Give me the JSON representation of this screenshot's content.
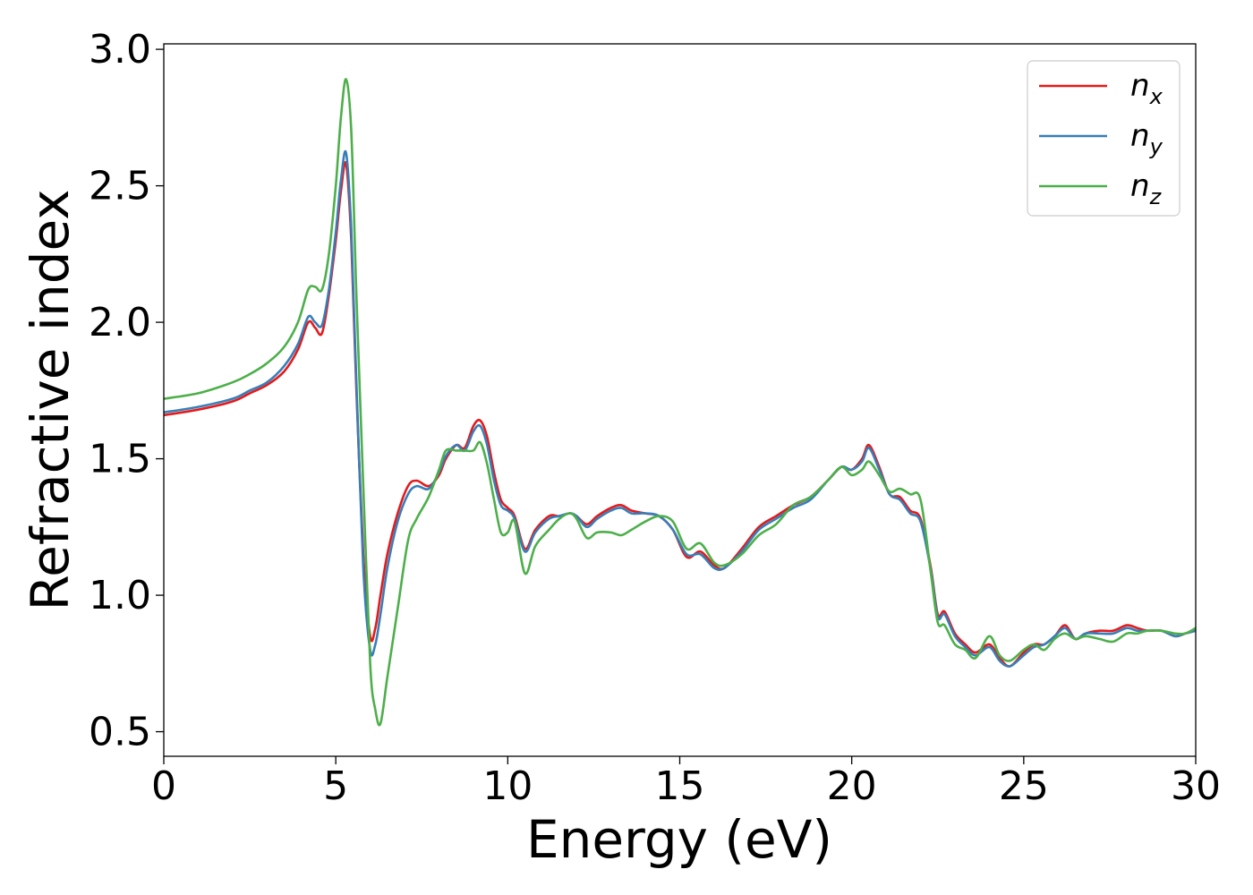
{
  "chart_data": {
    "type": "line",
    "title": "",
    "xlabel": "Energy (eV)",
    "ylabel": "Refractive index",
    "xlim": [
      0,
      30
    ],
    "ylim": [
      0.41,
      3.02
    ],
    "xticks": [
      "0",
      "5",
      "10",
      "15",
      "20",
      "25",
      "30"
    ],
    "yticks": [
      "0.5",
      "1.0",
      "1.5",
      "2.0",
      "2.5",
      "3.0"
    ],
    "grid": false,
    "legend_position": "top-right",
    "series": [
      {
        "name": "n",
        "subscript": "x",
        "color": "#e41a1c",
        "x": [
          0,
          1,
          2,
          2.5,
          3,
          3.5,
          3.9,
          4.2,
          4.4,
          4.6,
          4.8,
          5.0,
          5.15,
          5.3,
          5.45,
          5.6,
          5.8,
          6.0,
          6.15,
          6.3,
          6.5,
          6.8,
          7.1,
          7.35,
          7.7,
          8.0,
          8.2,
          8.5,
          8.75,
          9.0,
          9.2,
          9.4,
          9.6,
          9.8,
          10.0,
          10.2,
          10.5,
          10.8,
          11.2,
          11.5,
          11.8,
          12.0,
          12.3,
          12.6,
          13.0,
          13.3,
          13.6,
          14.0,
          14.4,
          14.8,
          15.2,
          15.6,
          16.0,
          16.3,
          16.8,
          17.3,
          17.8,
          18.3,
          18.8,
          19.3,
          19.7,
          20.0,
          20.3,
          20.5,
          20.8,
          21.1,
          21.4,
          21.7,
          22.0,
          22.3,
          22.5,
          22.7,
          23.0,
          23.3,
          23.6,
          24.0,
          24.3,
          24.6,
          25.0,
          25.3,
          25.6,
          25.9,
          26.2,
          26.5,
          26.8,
          27.2,
          27.6,
          28.0,
          28.3,
          28.6,
          29.0,
          29.4,
          29.7,
          30.0
        ],
        "y": [
          1.66,
          1.68,
          1.71,
          1.74,
          1.77,
          1.82,
          1.9,
          2.0,
          1.98,
          1.96,
          2.1,
          2.3,
          2.48,
          2.58,
          2.3,
          1.75,
          1.15,
          0.85,
          0.88,
          1.0,
          1.15,
          1.3,
          1.4,
          1.42,
          1.4,
          1.44,
          1.5,
          1.55,
          1.54,
          1.62,
          1.64,
          1.58,
          1.45,
          1.35,
          1.32,
          1.29,
          1.17,
          1.24,
          1.29,
          1.29,
          1.3,
          1.29,
          1.26,
          1.29,
          1.32,
          1.33,
          1.31,
          1.3,
          1.29,
          1.24,
          1.14,
          1.16,
          1.11,
          1.1,
          1.17,
          1.25,
          1.29,
          1.33,
          1.36,
          1.42,
          1.47,
          1.46,
          1.5,
          1.55,
          1.47,
          1.37,
          1.36,
          1.31,
          1.28,
          1.1,
          0.93,
          0.94,
          0.86,
          0.82,
          0.79,
          0.82,
          0.77,
          0.74,
          0.79,
          0.82,
          0.82,
          0.85,
          0.89,
          0.84,
          0.86,
          0.87,
          0.87,
          0.89,
          0.88,
          0.87,
          0.87,
          0.85,
          0.86,
          0.87
        ]
      },
      {
        "name": "n",
        "subscript": "y",
        "color": "#377eb8",
        "x": [
          0,
          1,
          2,
          2.5,
          3,
          3.5,
          3.9,
          4.2,
          4.4,
          4.6,
          4.8,
          5.0,
          5.15,
          5.3,
          5.45,
          5.6,
          5.8,
          6.0,
          6.15,
          6.3,
          6.5,
          6.8,
          7.1,
          7.35,
          7.7,
          8.0,
          8.2,
          8.5,
          8.75,
          9.0,
          9.2,
          9.4,
          9.6,
          9.8,
          10.0,
          10.2,
          10.5,
          10.8,
          11.2,
          11.5,
          11.8,
          12.0,
          12.3,
          12.6,
          13.0,
          13.3,
          13.6,
          14.0,
          14.4,
          14.8,
          15.2,
          15.6,
          16.0,
          16.3,
          16.8,
          17.3,
          17.8,
          18.3,
          18.8,
          19.3,
          19.7,
          20.0,
          20.3,
          20.5,
          20.8,
          21.1,
          21.4,
          21.7,
          22.0,
          22.3,
          22.5,
          22.7,
          23.0,
          23.3,
          23.6,
          24.0,
          24.3,
          24.6,
          25.0,
          25.3,
          25.6,
          25.9,
          26.2,
          26.5,
          26.8,
          27.2,
          27.6,
          28.0,
          28.3,
          28.6,
          29.0,
          29.4,
          29.7,
          30.0
        ],
        "y": [
          1.67,
          1.69,
          1.72,
          1.75,
          1.78,
          1.84,
          1.92,
          2.02,
          2.0,
          1.99,
          2.12,
          2.33,
          2.52,
          2.62,
          2.34,
          1.78,
          1.1,
          0.8,
          0.82,
          0.93,
          1.1,
          1.27,
          1.37,
          1.4,
          1.39,
          1.45,
          1.51,
          1.55,
          1.53,
          1.6,
          1.62,
          1.55,
          1.42,
          1.33,
          1.31,
          1.28,
          1.16,
          1.23,
          1.28,
          1.29,
          1.3,
          1.29,
          1.25,
          1.28,
          1.31,
          1.32,
          1.3,
          1.3,
          1.29,
          1.24,
          1.15,
          1.15,
          1.1,
          1.1,
          1.16,
          1.24,
          1.28,
          1.32,
          1.35,
          1.42,
          1.47,
          1.46,
          1.49,
          1.54,
          1.46,
          1.37,
          1.35,
          1.3,
          1.27,
          1.09,
          0.92,
          0.93,
          0.85,
          0.81,
          0.78,
          0.81,
          0.76,
          0.74,
          0.78,
          0.81,
          0.82,
          0.85,
          0.88,
          0.84,
          0.86,
          0.86,
          0.86,
          0.88,
          0.87,
          0.87,
          0.87,
          0.85,
          0.86,
          0.87
        ]
      },
      {
        "name": "n",
        "subscript": "z",
        "color": "#4daf4a",
        "x": [
          0,
          1,
          2,
          2.5,
          3,
          3.5,
          3.9,
          4.2,
          4.4,
          4.6,
          4.8,
          5.0,
          5.15,
          5.3,
          5.45,
          5.6,
          5.8,
          6.0,
          6.15,
          6.3,
          6.5,
          6.8,
          7.1,
          7.35,
          7.7,
          8.0,
          8.2,
          8.5,
          8.75,
          9.0,
          9.2,
          9.4,
          9.6,
          9.8,
          10.0,
          10.2,
          10.5,
          10.8,
          11.2,
          11.5,
          11.8,
          12.0,
          12.3,
          12.6,
          13.0,
          13.3,
          13.6,
          14.0,
          14.4,
          14.8,
          15.2,
          15.6,
          16.0,
          16.3,
          16.8,
          17.3,
          17.8,
          18.3,
          18.8,
          19.3,
          19.7,
          20.0,
          20.3,
          20.5,
          20.8,
          21.1,
          21.4,
          21.7,
          22.0,
          22.3,
          22.5,
          22.7,
          23.0,
          23.3,
          23.6,
          24.0,
          24.3,
          24.6,
          25.0,
          25.3,
          25.6,
          25.9,
          26.2,
          26.5,
          26.8,
          27.2,
          27.6,
          28.0,
          28.3,
          28.6,
          29.0,
          29.4,
          29.7,
          30.0
        ],
        "y": [
          1.72,
          1.74,
          1.78,
          1.81,
          1.85,
          1.91,
          2.0,
          2.12,
          2.13,
          2.12,
          2.25,
          2.5,
          2.75,
          2.89,
          2.7,
          2.1,
          1.4,
          0.75,
          0.58,
          0.53,
          0.7,
          0.95,
          1.2,
          1.28,
          1.36,
          1.46,
          1.53,
          1.53,
          1.53,
          1.53,
          1.56,
          1.48,
          1.35,
          1.23,
          1.23,
          1.27,
          1.08,
          1.18,
          1.24,
          1.28,
          1.3,
          1.28,
          1.21,
          1.23,
          1.23,
          1.22,
          1.24,
          1.27,
          1.29,
          1.27,
          1.17,
          1.19,
          1.12,
          1.11,
          1.15,
          1.22,
          1.26,
          1.33,
          1.36,
          1.42,
          1.47,
          1.44,
          1.46,
          1.49,
          1.44,
          1.38,
          1.39,
          1.37,
          1.35,
          1.08,
          0.9,
          0.89,
          0.82,
          0.8,
          0.77,
          0.85,
          0.78,
          0.76,
          0.8,
          0.82,
          0.8,
          0.84,
          0.86,
          0.84,
          0.85,
          0.84,
          0.83,
          0.86,
          0.86,
          0.87,
          0.87,
          0.86,
          0.86,
          0.88
        ]
      }
    ]
  }
}
